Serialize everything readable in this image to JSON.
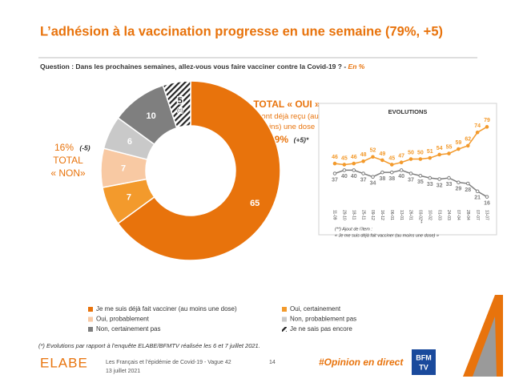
{
  "header": {
    "title": "L’adhésion à la vaccination progresse en une semaine (79%, +5)",
    "question": "Question : Dans les prochaines semaines, allez-vous vous faire vacciner contre la Covid-19 ? - ",
    "question_unit": "En %"
  },
  "chart_data": [
    {
      "type": "donut",
      "categories": [
        "Je me suis déjà fait vacciner (au moins une dose)",
        "Oui, certainement",
        "Oui, probablement",
        "Non, probablement pas",
        "Non, certainement pas",
        "Je ne sais pas encore"
      ],
      "values": [
        65,
        7,
        7,
        6,
        10,
        5
      ],
      "colors": [
        "#e8730c",
        "#f39a2c",
        "#f8c9a3",
        "#c9c9c9",
        "#7f7f7f",
        "hatch"
      ],
      "annotations": {
        "unchanged": "(=)",
        "total_oui": "TOTAL « OUI »",
        "total_oui_note": "+ ont déjà reçu (au moins) une dose",
        "total_oui_value": "79%",
        "total_oui_change": "(+5)*",
        "total_non_value": "16%",
        "total_non_change": "(-5)",
        "total_non_line1": "TOTAL",
        "total_non_line2": "« NON»"
      }
    },
    {
      "type": "line",
      "title": "EVOLUTIONS",
      "categories": [
        "11-09",
        "29-10",
        "18-11",
        "25-11",
        "09-12",
        "16-12",
        "06-01",
        "13-01",
        "26-01",
        "03-02**",
        "10-02",
        "01-03",
        "24-03",
        "07-04",
        "28-04",
        "07-07",
        "13-07"
      ],
      "series": [
        {
          "name": "TOTAL « OUI »",
          "color": "#f39a2c",
          "values": [
            46,
            45,
            46,
            48,
            52,
            49,
            45,
            47,
            50,
            50,
            51,
            54,
            55,
            59,
            62,
            74,
            79
          ]
        },
        {
          "name": "TOTAL « NON»",
          "color": "#7f7f7f",
          "values": [
            37,
            40,
            40,
            37,
            34,
            38,
            38,
            40,
            37,
            35,
            33,
            32,
            33,
            29,
            28,
            21,
            16
          ]
        }
      ],
      "ylim": [
        10,
        85
      ],
      "note_line1": "(**) Ajout de l’item :",
      "note_line2": "« Je me suis déjà fait vacciner (au moins une dose) »"
    }
  ],
  "footnote": "(*) Evolutions par rapport à l’enquête ELABE/BFMTV réalisée les 6 et 7 juillet 2021.",
  "footer": {
    "brand": "ELABE",
    "study": "Les Français et l’épidémie de Covid-19 - Vague 42",
    "date": "13 juillet 2021",
    "page": "14",
    "hashtag": "#Opinion en direct",
    "logo_top": "BFM",
    "logo_bottom": "TV"
  }
}
